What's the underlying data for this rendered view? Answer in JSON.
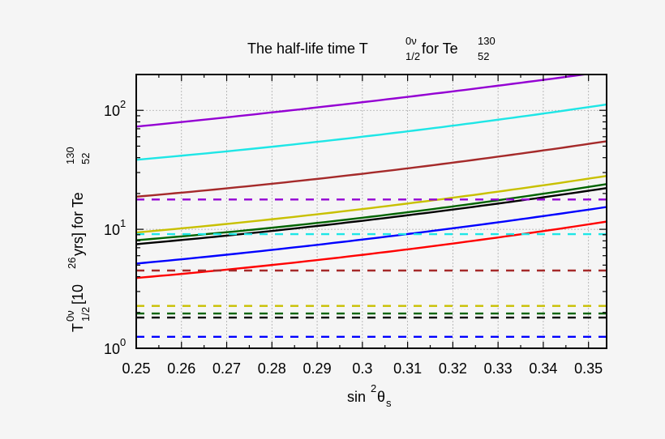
{
  "chart_data": {
    "type": "line",
    "title": {
      "main": "The half-life time T",
      "sup": "0ν",
      "sub": "1/2",
      "mid": " for Te",
      "sup2": "130",
      "sub2": "52"
    },
    "xlabel": {
      "main": "sin",
      "sup": "2",
      "theta": "θ",
      "sub": "s"
    },
    "ylabel": {
      "main": "T",
      "sup": "0ν",
      "sub": "1/2",
      "a": " [10",
      "exp": "26",
      "b": " yrs] for Te",
      "sup2": "130",
      "sub2": "52"
    },
    "xlim": [
      0.25,
      0.354
    ],
    "ylim": [
      1,
      200
    ],
    "yscale": "log",
    "grid": true,
    "x_ticks": [
      "0.25",
      "0.26",
      "0.27",
      "0.28",
      "0.29",
      "0.3",
      "0.31",
      "0.32",
      "0.33",
      "0.34",
      "0.35"
    ],
    "y_ticks": [
      {
        "base": "10",
        "exp": "0"
      },
      {
        "base": "10",
        "exp": "1"
      },
      {
        "base": "10",
        "exp": "2"
      }
    ],
    "series": [
      {
        "color": "#9400d3",
        "style": "solid",
        "x": [
          0.25,
          0.3,
          0.349
        ],
        "y": [
          73,
          117,
          200
        ]
      },
      {
        "color": "#1ee6e6",
        "style": "solid",
        "x": [
          0.25,
          0.3,
          0.354
        ],
        "y": [
          38.4,
          60,
          112
        ]
      },
      {
        "color": "#a52a2a",
        "style": "solid",
        "x": [
          0.25,
          0.3,
          0.354
        ],
        "y": [
          18.8,
          29.3,
          55
        ]
      },
      {
        "color": "#c8c000",
        "style": "solid",
        "x": [
          0.25,
          0.3,
          0.354
        ],
        "y": [
          9.4,
          14.8,
          28.1
        ]
      },
      {
        "color": "#006400",
        "style": "solid",
        "x": [
          0.25,
          0.3,
          0.354
        ],
        "y": [
          8.1,
          12.5,
          24
        ]
      },
      {
        "color": "#000000",
        "style": "solid",
        "x": [
          0.25,
          0.3,
          0.354
        ],
        "y": [
          7.5,
          11.8,
          22.2
        ]
      },
      {
        "color": "#0000ff",
        "style": "solid",
        "x": [
          0.25,
          0.3,
          0.354
        ],
        "y": [
          5.15,
          8.2,
          15.4
        ]
      },
      {
        "color": "#ff0000",
        "style": "solid",
        "x": [
          0.25,
          0.3,
          0.354
        ],
        "y": [
          3.9,
          6.1,
          11.6
        ]
      },
      {
        "color": "#9400d3",
        "style": "dashed",
        "x": [
          0.25,
          0.354
        ],
        "y": [
          17.8,
          17.8
        ]
      },
      {
        "color": "#1ee6e6",
        "style": "dashed",
        "x": [
          0.25,
          0.354
        ],
        "y": [
          9.1,
          9.1
        ]
      },
      {
        "color": "#a52a2a",
        "style": "dashed",
        "x": [
          0.25,
          0.354
        ],
        "y": [
          4.5,
          4.5
        ]
      },
      {
        "color": "#c8c000",
        "style": "dashed",
        "x": [
          0.25,
          0.354
        ],
        "y": [
          2.27,
          2.27
        ]
      },
      {
        "color": "#006400",
        "style": "dashed",
        "x": [
          0.25,
          0.354
        ],
        "y": [
          1.96,
          1.96
        ]
      },
      {
        "color": "#000000",
        "style": "dashed",
        "x": [
          0.25,
          0.354
        ],
        "y": [
          1.81,
          1.81
        ]
      },
      {
        "color": "#0000ff",
        "style": "dashed",
        "x": [
          0.25,
          0.354
        ],
        "y": [
          1.25,
          1.25
        ]
      }
    ]
  }
}
